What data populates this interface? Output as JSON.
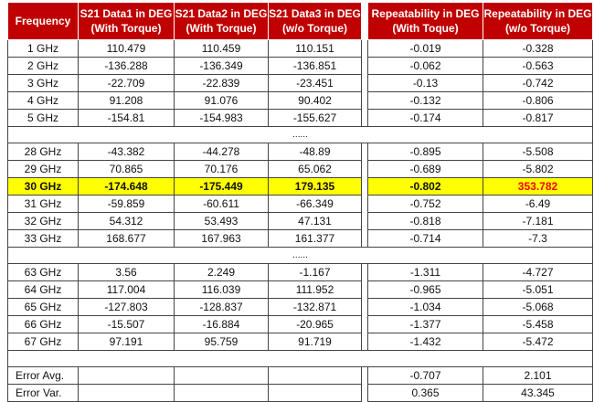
{
  "headers": [
    "Frequency",
    "S21 Data1 in DEG\n(With Torque)",
    "S21 Data2 in DEG\n(With Torque)",
    "S21 Data3 in DEG\n(w/o Torque)",
    "Repeatability in DEG\n(With Toque)",
    "Repeatability in DEG\n(w/o Torque)"
  ],
  "ellipsis": "......",
  "groups": [
    [
      [
        "1 GHz",
        "110.479",
        "110.459",
        "110.151",
        "-0.019",
        "-0.328"
      ],
      [
        "2 GHz",
        "-136.288",
        "-136.349",
        "-136.851",
        "-0.062",
        "-0.563"
      ],
      [
        "3 GHz",
        "-22.709",
        "-22.839",
        "-23.451",
        "-0.13",
        "-0.742"
      ],
      [
        "4 GHz",
        "91.208",
        "91.076",
        "90.402",
        "-0.132",
        "-0.806"
      ],
      [
        "5 GHz",
        "-154.81",
        "-154.983",
        "-155.627",
        "-0.174",
        "-0.817"
      ]
    ],
    [
      [
        "28 GHz",
        "-43.382",
        "-44.278",
        "-48.89",
        "-0.895",
        "-5.508"
      ],
      [
        "29 GHz",
        "70.865",
        "70.176",
        "65.062",
        "-0.689",
        "-5.802"
      ],
      [
        "30 GHz",
        "-174.648",
        "-175.449",
        "179.135",
        "-0.802",
        "353.782"
      ],
      [
        "31 GHz",
        "-59.859",
        "-60.611",
        "-66.349",
        "-0.752",
        "-6.49"
      ],
      [
        "32 GHz",
        "54.312",
        "53.493",
        "47.131",
        "-0.818",
        "-7.181"
      ],
      [
        "33 GHz",
        "168.677",
        "167.963",
        "161.377",
        "-0.714",
        "-7.3"
      ]
    ],
    [
      [
        "63 GHz",
        "3.56",
        "2.249",
        "-1.167",
        "-1.311",
        "-4.727"
      ],
      [
        "64 GHz",
        "117.004",
        "116.039",
        "111.952",
        "-0.965",
        "-5.051"
      ],
      [
        "65 GHz",
        "-127.803",
        "-128.837",
        "-132.871",
        "-1.034",
        "-5.068"
      ],
      [
        "66 GHz",
        "-15.507",
        "-16.884",
        "-20.965",
        "-1.377",
        "-5.458"
      ],
      [
        "67 GHz",
        "97.191",
        "95.759",
        "91.719",
        "-1.432",
        "-5.472"
      ]
    ]
  ],
  "highlight_row": "30 GHz",
  "summary": [
    [
      "Error Avg.",
      "",
      "",
      "",
      "-0.707",
      "2.101"
    ],
    [
      "Error Var.",
      "",
      "",
      "",
      "0.365",
      "43.345"
    ]
  ],
  "colors": {
    "header_bg": "#c00000",
    "highlight_bg": "#ffff00",
    "outlier_text": "#ff0000"
  }
}
